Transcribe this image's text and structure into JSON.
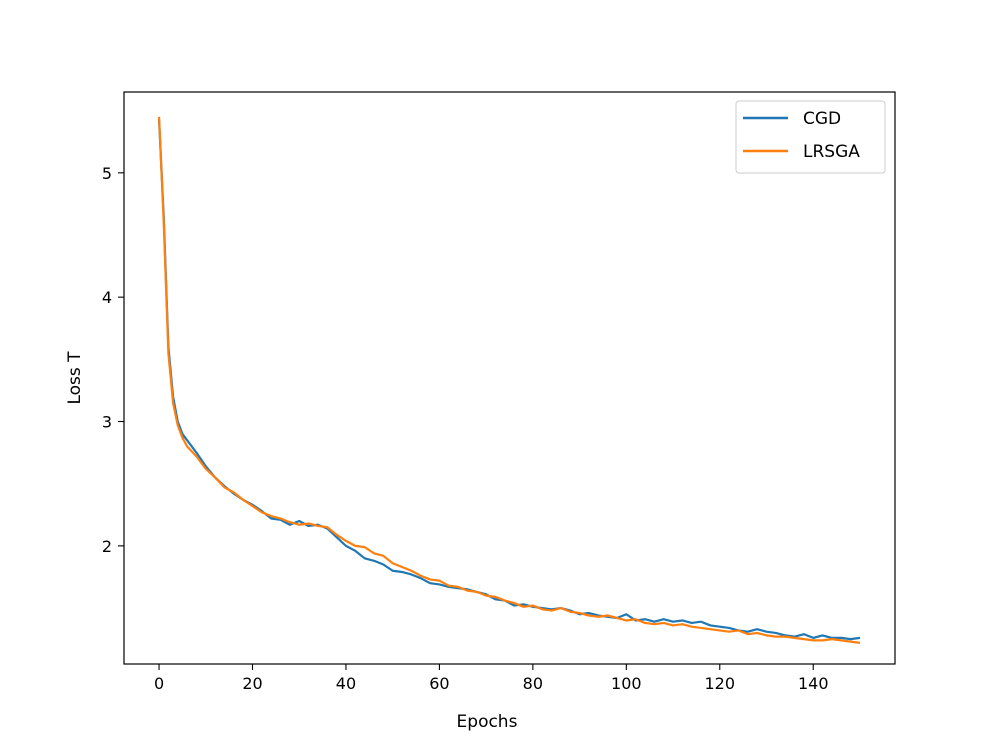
{
  "chart_data": {
    "type": "line",
    "title": "",
    "xlabel": "Epochs",
    "ylabel": "Loss T",
    "xlim": [
      -7.5,
      157.5
    ],
    "ylim": [
      1.05,
      5.65
    ],
    "x_ticks": [
      0,
      20,
      40,
      60,
      80,
      100,
      120,
      140
    ],
    "y_ticks": [
      2,
      3,
      4,
      5
    ],
    "grid": false,
    "legend_position": "top-right",
    "series": [
      {
        "name": "CGD",
        "color": "#1f77b4",
        "x": [
          0,
          1,
          2,
          3,
          4,
          5,
          6,
          8,
          10,
          12,
          14,
          16,
          18,
          20,
          22,
          24,
          26,
          28,
          30,
          32,
          34,
          36,
          38,
          40,
          42,
          44,
          46,
          48,
          50,
          52,
          54,
          56,
          58,
          60,
          62,
          64,
          66,
          68,
          70,
          72,
          74,
          76,
          78,
          80,
          82,
          84,
          86,
          88,
          90,
          92,
          94,
          96,
          98,
          100,
          102,
          104,
          106,
          108,
          110,
          112,
          114,
          116,
          118,
          120,
          122,
          124,
          126,
          128,
          130,
          132,
          134,
          136,
          138,
          140,
          142,
          144,
          146,
          148,
          150
        ],
        "values": [
          5.43,
          4.65,
          3.6,
          3.2,
          3.0,
          2.9,
          2.85,
          2.75,
          2.64,
          2.55,
          2.48,
          2.42,
          2.37,
          2.33,
          2.28,
          2.22,
          2.21,
          2.17,
          2.2,
          2.16,
          2.17,
          2.14,
          2.07,
          2.0,
          1.96,
          1.9,
          1.88,
          1.85,
          1.8,
          1.79,
          1.77,
          1.74,
          1.7,
          1.69,
          1.67,
          1.66,
          1.65,
          1.63,
          1.61,
          1.57,
          1.56,
          1.52,
          1.53,
          1.51,
          1.5,
          1.49,
          1.5,
          1.48,
          1.45,
          1.46,
          1.44,
          1.43,
          1.42,
          1.45,
          1.4,
          1.41,
          1.39,
          1.41,
          1.39,
          1.4,
          1.38,
          1.39,
          1.36,
          1.35,
          1.34,
          1.32,
          1.31,
          1.33,
          1.31,
          1.3,
          1.28,
          1.27,
          1.29,
          1.26,
          1.28,
          1.26,
          1.26,
          1.25,
          1.26
        ]
      },
      {
        "name": "LRSGA",
        "color": "#ff7f0e",
        "x": [
          0,
          1,
          2,
          3,
          4,
          5,
          6,
          8,
          10,
          12,
          14,
          16,
          18,
          20,
          22,
          24,
          26,
          28,
          30,
          32,
          34,
          36,
          38,
          40,
          42,
          44,
          46,
          48,
          50,
          52,
          54,
          56,
          58,
          60,
          62,
          64,
          66,
          68,
          70,
          72,
          74,
          76,
          78,
          80,
          82,
          84,
          86,
          88,
          90,
          92,
          94,
          96,
          98,
          100,
          102,
          104,
          106,
          108,
          110,
          112,
          114,
          116,
          118,
          120,
          122,
          124,
          126,
          128,
          130,
          132,
          134,
          136,
          138,
          140,
          142,
          144,
          146,
          148,
          150
        ],
        "values": [
          5.45,
          4.6,
          3.55,
          3.15,
          2.97,
          2.87,
          2.8,
          2.72,
          2.62,
          2.55,
          2.47,
          2.43,
          2.37,
          2.32,
          2.27,
          2.24,
          2.22,
          2.19,
          2.17,
          2.18,
          2.16,
          2.15,
          2.09,
          2.04,
          2.0,
          1.99,
          1.94,
          1.92,
          1.86,
          1.83,
          1.8,
          1.76,
          1.73,
          1.72,
          1.68,
          1.67,
          1.64,
          1.63,
          1.6,
          1.59,
          1.56,
          1.54,
          1.51,
          1.52,
          1.49,
          1.48,
          1.5,
          1.47,
          1.46,
          1.44,
          1.43,
          1.44,
          1.42,
          1.4,
          1.41,
          1.38,
          1.37,
          1.38,
          1.36,
          1.37,
          1.35,
          1.34,
          1.33,
          1.32,
          1.31,
          1.32,
          1.29,
          1.3,
          1.28,
          1.27,
          1.27,
          1.26,
          1.25,
          1.24,
          1.24,
          1.25,
          1.24,
          1.23,
          1.22
        ]
      }
    ]
  }
}
